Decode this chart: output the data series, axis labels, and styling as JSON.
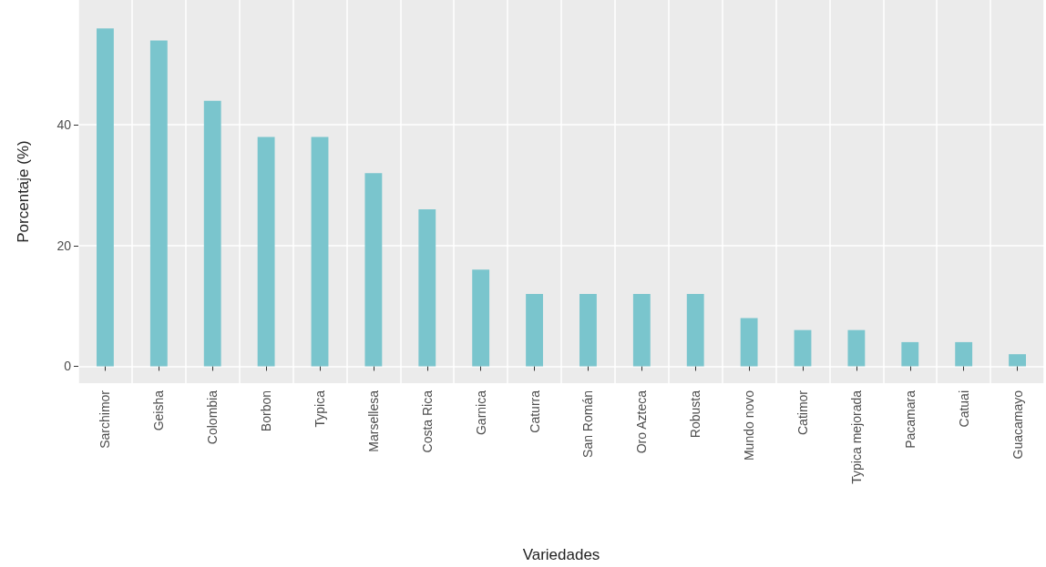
{
  "chart_data": {
    "type": "bar",
    "xlabel": "Variedades",
    "ylabel": "Porcentaje (%)",
    "categories": [
      "Sarchimor",
      "Geisha",
      "Colombia",
      "Borbon",
      "Typica",
      "Marsellesa",
      "Costa Rica",
      "Garnica",
      "Caturra",
      "San Román",
      "Oro Azteca",
      "Robusta",
      "Mundo novo",
      "Catimor",
      "Typica mejorada",
      "Pacamara",
      "Catuai",
      "Guacamayo"
    ],
    "values": [
      56,
      54,
      44,
      38,
      38,
      32,
      26,
      16,
      12,
      12,
      12,
      12,
      8,
      6,
      6,
      4,
      4,
      2
    ],
    "color": "#7ac5cd",
    "ylim": [
      -2.8,
      60.7
    ],
    "yticks": [
      0,
      20,
      40
    ],
    "grid": true
  }
}
